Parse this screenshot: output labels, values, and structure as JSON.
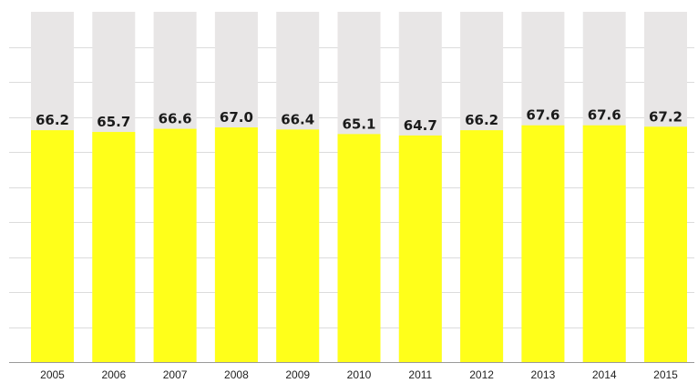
{
  "chart_data": {
    "type": "bar",
    "categories": [
      "2005",
      "2006",
      "2007",
      "2008",
      "2009",
      "2010",
      "2011",
      "2012",
      "2013",
      "2014",
      "2015"
    ],
    "values": [
      66.2,
      65.7,
      66.6,
      67.0,
      66.4,
      65.1,
      64.7,
      66.2,
      67.6,
      67.6,
      67.2
    ],
    "value_labels": [
      "66.2",
      "65.7",
      "66.6",
      "67.0",
      "66.4",
      "65.1",
      "64.7",
      "66.2",
      "67.6",
      "67.6",
      "67.2"
    ],
    "ylim": [
      0,
      100
    ],
    "grid": true,
    "legend": "none",
    "colors": {
      "bar": "#ffff1a",
      "track": "#e8e6e6",
      "grid": "#dcdcdc",
      "axis": "#9a9a9a",
      "label": "#1a1a1a"
    }
  }
}
